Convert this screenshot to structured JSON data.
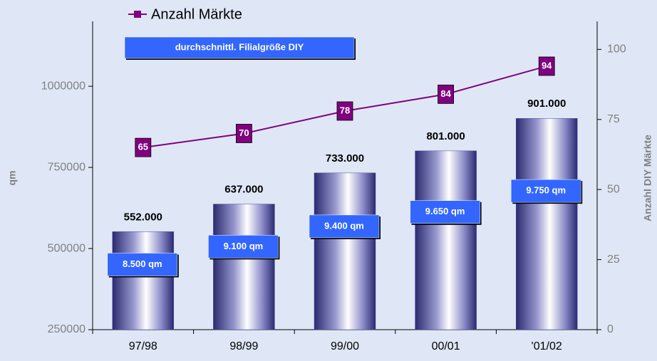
{
  "chart_data": {
    "type": "bar",
    "categories": [
      "97/98",
      "98/99",
      "99/00",
      "00/01",
      "'01/02"
    ],
    "series": [
      {
        "type": "bar",
        "color": "#4a4a9a",
        "values": [
          552000,
          637000,
          733000,
          801000,
          901000
        ],
        "value_labels": [
          "552.000",
          "637.000",
          "733.000",
          "801.000",
          "901.000"
        ]
      },
      {
        "type": "line",
        "name": "Anzahl Märkte",
        "axis": "y2",
        "color": "#800080",
        "values": [
          65,
          70,
          78,
          84,
          94
        ]
      },
      {
        "type": "label-box",
        "name": "durchschnittl. Filialgröße DIY",
        "color": "#3366ff",
        "values": [
          8500,
          9100,
          9400,
          9650,
          9750
        ],
        "value_labels": [
          "8.500 qm",
          "9.100 qm",
          "9.400 qm",
          "9.650 qm",
          "9.750 qm"
        ]
      }
    ],
    "ylabel": "qm",
    "y2label": "Anzahl DIY Märkte",
    "ylim": [
      250000,
      1200000
    ],
    "yticks": [
      250000,
      500000,
      750000,
      1000000
    ],
    "y2lim": [
      0,
      110
    ],
    "y2ticks": [
      0,
      25,
      50,
      75,
      100
    ]
  }
}
